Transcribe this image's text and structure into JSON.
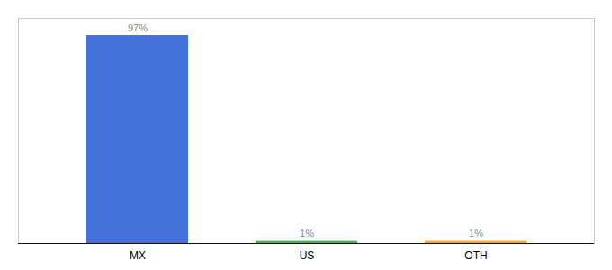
{
  "chart_data": {
    "type": "bar",
    "categories": [
      "MX",
      "US",
      "OTH"
    ],
    "values": [
      97,
      1,
      1
    ],
    "value_labels": [
      "97%",
      "1%",
      "1%"
    ],
    "colors": [
      "#4472db",
      "#4caf50",
      "#ffa726"
    ],
    "ylim": [
      0,
      105
    ],
    "yticks": [],
    "tick_labels": "x",
    "data_labels": true,
    "grid": false
  }
}
